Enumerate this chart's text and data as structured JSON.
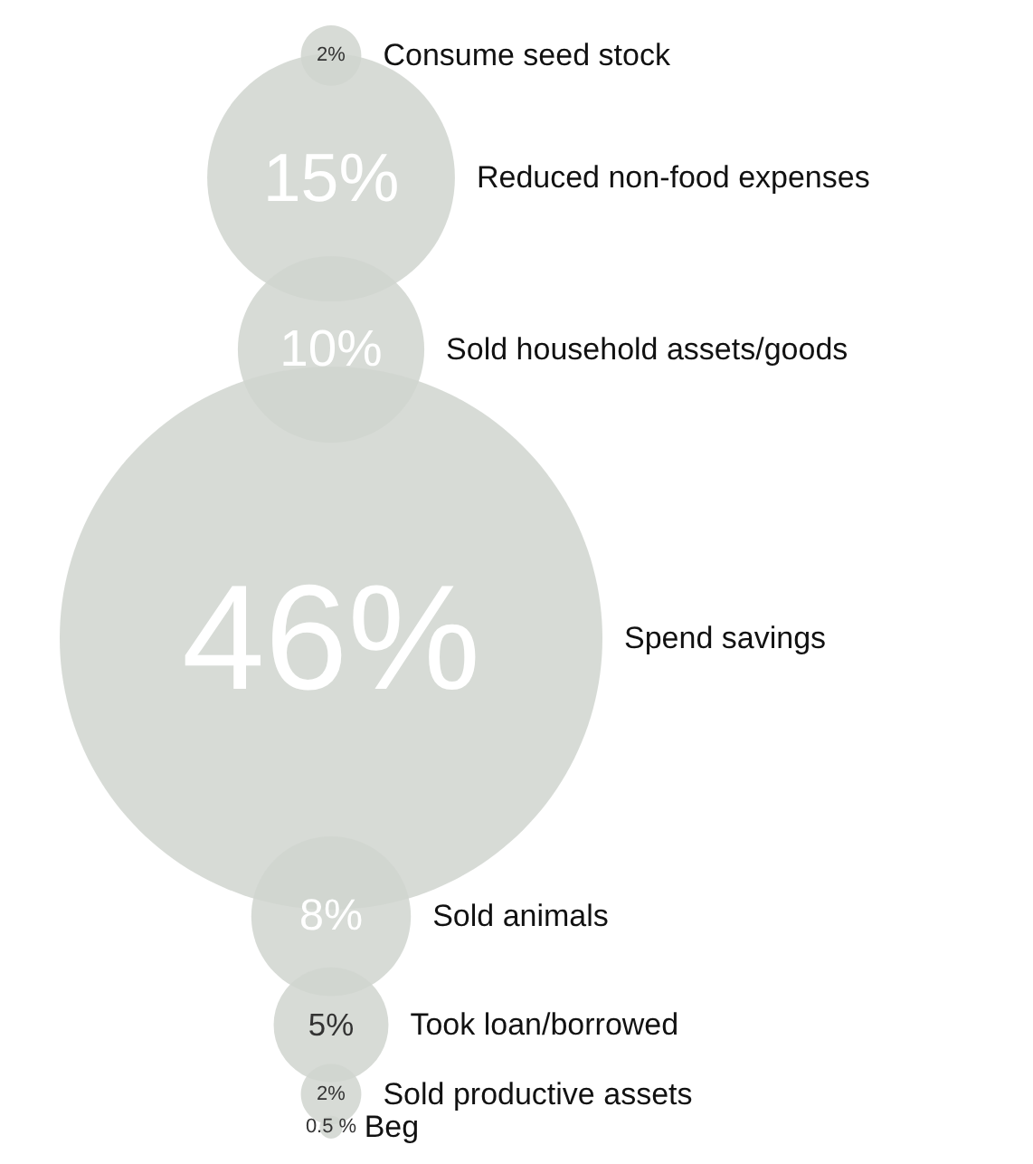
{
  "chart_data": {
    "type": "other",
    "categories": [
      "Consume seed stock",
      "Reduced non-food expenses",
      "Sold household assets/goods",
      "Spend savings",
      "Sold animals",
      "Took loan/borrowed",
      "Sold productive assets",
      "Beg"
    ],
    "values": [
      2,
      15,
      10,
      46,
      8,
      5,
      2,
      0.5
    ],
    "value_labels": [
      "2%",
      "15%",
      "10%",
      "46%",
      "8%",
      "5%",
      "2%",
      "0.5 %"
    ],
    "color": "#d0d5cf"
  }
}
